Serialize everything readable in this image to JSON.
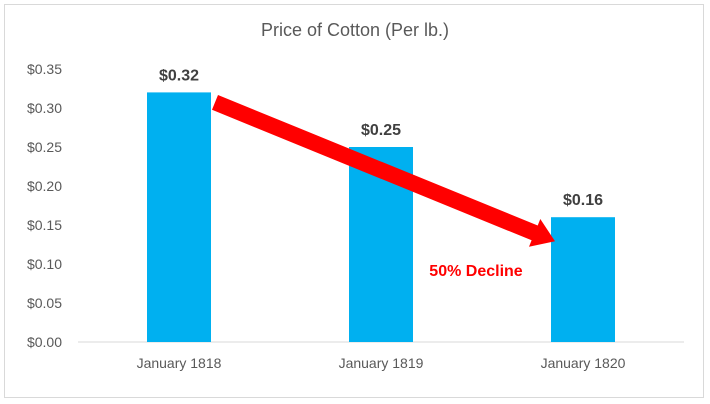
{
  "chart_data": {
    "type": "bar",
    "title": "Price of Cotton (Per lb.)",
    "categories": [
      "January 1818",
      "January 1819",
      "January 1820"
    ],
    "values": [
      0.32,
      0.25,
      0.16
    ],
    "data_labels": [
      "$0.32",
      "$0.25",
      "$0.16"
    ],
    "yticks": [
      "$0.00",
      "$0.05",
      "$0.10",
      "$0.15",
      "$0.20",
      "$0.25",
      "$0.30",
      "$0.35"
    ],
    "ylim": [
      0,
      0.35
    ],
    "grid": false,
    "bar_color": "#00b0f0",
    "annotation": {
      "text": "50% Decline",
      "color": "#ff0000",
      "from_category": "January 1818",
      "to_category": "January 1820"
    }
  }
}
